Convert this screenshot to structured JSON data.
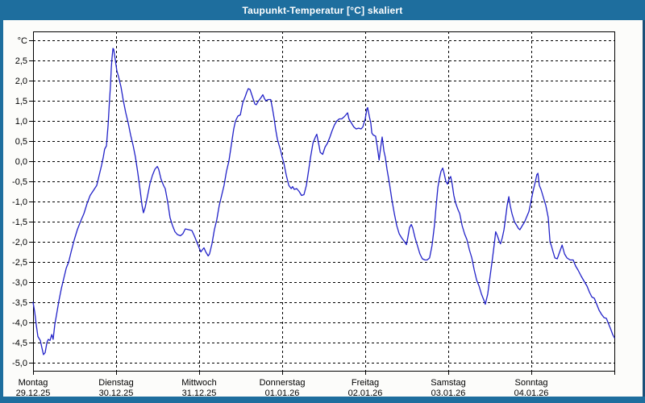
{
  "window": {
    "title": "Taupunkt-Temperatur [°C] skaliert",
    "colors": {
      "title_bar": "#1e6e9e",
      "frame_right": "#1c5078",
      "plot_background": "#ffffff",
      "grid": "#000000",
      "line": "#2222c8",
      "text": "#000000"
    }
  },
  "chart_data": {
    "type": "line",
    "title": "Taupunkt-Temperatur [°C] skaliert",
    "grid": "dashed",
    "legend": "none",
    "y_axis": {
      "unit": "°C",
      "min": -5.2,
      "max": 3.2,
      "tick_step": 0.5,
      "ticks": [
        {
          "value": 3.0,
          "label": "°C"
        },
        {
          "value": 2.5,
          "label": "2,5"
        },
        {
          "value": 2.0,
          "label": "2,0"
        },
        {
          "value": 1.5,
          "label": "1,5"
        },
        {
          "value": 1.0,
          "label": "1,0"
        },
        {
          "value": 0.5,
          "label": "0,5"
        },
        {
          "value": 0.0,
          "label": "0,0"
        },
        {
          "value": -0.5,
          "label": "-0,5"
        },
        {
          "value": -1.0,
          "label": "-1,0"
        },
        {
          "value": -1.5,
          "label": "-1,5"
        },
        {
          "value": -2.0,
          "label": "-2,0"
        },
        {
          "value": -2.5,
          "label": "-2,5"
        },
        {
          "value": -3.0,
          "label": "-3,0"
        },
        {
          "value": -3.5,
          "label": "-3,5"
        },
        {
          "value": -4.0,
          "label": "-4,0"
        },
        {
          "value": -4.5,
          "label": "-4,5"
        },
        {
          "value": -5.0,
          "label": "-5,0"
        }
      ]
    },
    "x_axis": {
      "unit": "hours",
      "range_hours": [
        0,
        168
      ],
      "day_width_hours": 24,
      "days": [
        {
          "name": "Montag",
          "date": "29.12.25"
        },
        {
          "name": "Dienstag",
          "date": "30.12.25"
        },
        {
          "name": "Mittwoch",
          "date": "31.12.25"
        },
        {
          "name": "Donnerstag",
          "date": "01.01.26"
        },
        {
          "name": "Freitag",
          "date": "02.01.26"
        },
        {
          "name": "Samstag",
          "date": "03.01.26"
        },
        {
          "name": "Sonntag",
          "date": "04.01.26"
        }
      ]
    },
    "series": [
      {
        "name": "Taupunkt-Temperatur",
        "color": "#2222c8",
        "points": [
          [
            0,
            -3.5
          ],
          [
            0.5,
            -3.75
          ],
          [
            0.9,
            -4.05
          ],
          [
            1.4,
            -4.35
          ],
          [
            2.1,
            -4.45
          ],
          [
            2.6,
            -4.65
          ],
          [
            3,
            -4.8
          ],
          [
            3.5,
            -4.75
          ],
          [
            4,
            -4.5
          ],
          [
            4.4,
            -4.42
          ],
          [
            4.9,
            -4.45
          ],
          [
            5.4,
            -4.3
          ],
          [
            5.8,
            -4.42
          ],
          [
            6.3,
            -4.05
          ],
          [
            6.8,
            -3.8
          ],
          [
            7.5,
            -3.45
          ],
          [
            8.2,
            -3.15
          ],
          [
            8.9,
            -2.9
          ],
          [
            9.6,
            -2.65
          ],
          [
            10.3,
            -2.5
          ],
          [
            11,
            -2.25
          ],
          [
            11.9,
            -1.95
          ],
          [
            12.8,
            -1.7
          ],
          [
            13.7,
            -1.5
          ],
          [
            14.7,
            -1.3
          ],
          [
            15.6,
            -1.05
          ],
          [
            16.5,
            -0.85
          ],
          [
            17.5,
            -0.72
          ],
          [
            18.4,
            -0.6
          ],
          [
            19.1,
            -0.35
          ],
          [
            19.8,
            -0.1
          ],
          [
            20.3,
            0.1
          ],
          [
            20.7,
            0.3
          ],
          [
            21.2,
            0.38
          ],
          [
            21.7,
            0.9
          ],
          [
            22.1,
            1.5
          ],
          [
            22.4,
            1.9
          ],
          [
            22.6,
            2.3
          ],
          [
            22.8,
            2.55
          ],
          [
            23.1,
            2.8
          ],
          [
            23.3,
            2.78
          ],
          [
            23.8,
            2.5
          ],
          [
            24.2,
            2.25
          ],
          [
            24.7,
            2.1
          ],
          [
            25.4,
            1.85
          ],
          [
            26.1,
            1.5
          ],
          [
            26.8,
            1.2
          ],
          [
            27.5,
            0.95
          ],
          [
            28.2,
            0.65
          ],
          [
            28.9,
            0.4
          ],
          [
            29.6,
            0.1
          ],
          [
            30.3,
            -0.3
          ],
          [
            31,
            -0.75
          ],
          [
            31.5,
            -1.1
          ],
          [
            31.9,
            -1.28
          ],
          [
            32.4,
            -1.15
          ],
          [
            33.1,
            -0.85
          ],
          [
            33.8,
            -0.55
          ],
          [
            34.5,
            -0.35
          ],
          [
            35.2,
            -0.2
          ],
          [
            35.9,
            -0.13
          ],
          [
            36.3,
            -0.2
          ],
          [
            37,
            -0.45
          ],
          [
            37.7,
            -0.6
          ],
          [
            38.2,
            -0.68
          ],
          [
            38.9,
            -1
          ],
          [
            39.6,
            -1.4
          ],
          [
            40.3,
            -1.6
          ],
          [
            41,
            -1.75
          ],
          [
            41.7,
            -1.82
          ],
          [
            42.6,
            -1.85
          ],
          [
            43.3,
            -1.8
          ],
          [
            44,
            -1.68
          ],
          [
            45,
            -1.7
          ],
          [
            45.9,
            -1.72
          ],
          [
            46.6,
            -1.85
          ],
          [
            47.3,
            -2
          ],
          [
            48,
            -2.15
          ],
          [
            48.5,
            -2.25
          ],
          [
            48.9,
            -2.2
          ],
          [
            49.4,
            -2.15
          ],
          [
            49.9,
            -2.25
          ],
          [
            50.6,
            -2.35
          ],
          [
            51,
            -2.3
          ],
          [
            51.7,
            -2.05
          ],
          [
            52.4,
            -1.7
          ],
          [
            53.1,
            -1.45
          ],
          [
            53.8,
            -1.1
          ],
          [
            54.5,
            -0.85
          ],
          [
            55.2,
            -0.6
          ],
          [
            55.9,
            -0.25
          ],
          [
            56.6,
            0
          ],
          [
            57.3,
            0.4
          ],
          [
            58,
            0.8
          ],
          [
            58.5,
            1
          ],
          [
            59.2,
            1.12
          ],
          [
            59.9,
            1.15
          ],
          [
            60.6,
            1.45
          ],
          [
            61.3,
            1.6
          ],
          [
            61.7,
            1.7
          ],
          [
            62.2,
            1.8
          ],
          [
            62.7,
            1.78
          ],
          [
            63.4,
            1.6
          ],
          [
            64.1,
            1.42
          ],
          [
            64.5,
            1.4
          ],
          [
            65.2,
            1.5
          ],
          [
            65.9,
            1.58
          ],
          [
            66.4,
            1.65
          ],
          [
            66.9,
            1.55
          ],
          [
            67.3,
            1.5
          ],
          [
            68,
            1.53
          ],
          [
            68.7,
            1.53
          ],
          [
            69.2,
            1.3
          ],
          [
            69.7,
            1.05
          ],
          [
            70.1,
            0.8
          ],
          [
            70.6,
            0.55
          ],
          [
            71.1,
            0.4
          ],
          [
            71.5,
            0.28
          ],
          [
            72,
            0.1
          ],
          [
            72.5,
            -0.05
          ],
          [
            73.2,
            -0.35
          ],
          [
            73.9,
            -0.6
          ],
          [
            74.6,
            -0.68
          ],
          [
            75,
            -0.63
          ],
          [
            75.5,
            -0.7
          ],
          [
            76.2,
            -0.68
          ],
          [
            76.9,
            -0.75
          ],
          [
            77.6,
            -0.85
          ],
          [
            78.3,
            -0.83
          ],
          [
            79,
            -0.6
          ],
          [
            79.7,
            -0.2
          ],
          [
            80.2,
            0.1
          ],
          [
            80.9,
            0.45
          ],
          [
            81.6,
            0.6
          ],
          [
            82,
            0.67
          ],
          [
            82.5,
            0.45
          ],
          [
            83,
            0.22
          ],
          [
            83.7,
            0.17
          ],
          [
            84.4,
            0.35
          ],
          [
            85.1,
            0.45
          ],
          [
            85.8,
            0.6
          ],
          [
            86.4,
            0.75
          ],
          [
            87.1,
            0.9
          ],
          [
            87.8,
            1
          ],
          [
            88.5,
            1.05
          ],
          [
            89.2,
            1.05
          ],
          [
            89.9,
            1.1
          ],
          [
            90.4,
            1.15
          ],
          [
            90.9,
            1.2
          ],
          [
            91.3,
            1.05
          ],
          [
            92,
            0.95
          ],
          [
            92.7,
            0.85
          ],
          [
            93.4,
            0.8
          ],
          [
            94.1,
            0.82
          ],
          [
            94.8,
            0.8
          ],
          [
            95.3,
            0.85
          ],
          [
            96,
            1.05
          ],
          [
            96.5,
            1.3
          ],
          [
            96.7,
            1.33
          ],
          [
            97.2,
            1.1
          ],
          [
            97.6,
            0.95
          ],
          [
            97.9,
            0.7
          ],
          [
            98.3,
            0.65
          ],
          [
            99,
            0.62
          ],
          [
            99.5,
            0.35
          ],
          [
            100,
            0.03
          ],
          [
            100.4,
            0.3
          ],
          [
            100.9,
            0.6
          ],
          [
            101.4,
            0.25
          ],
          [
            101.8,
            0.1
          ],
          [
            102.3,
            -0.2
          ],
          [
            103,
            -0.55
          ],
          [
            103.7,
            -0.95
          ],
          [
            104.4,
            -1.3
          ],
          [
            105.1,
            -1.6
          ],
          [
            105.8,
            -1.8
          ],
          [
            106.5,
            -1.9
          ],
          [
            107.2,
            -1.98
          ],
          [
            107.9,
            -2.07
          ],
          [
            108.3,
            -1.9
          ],
          [
            108.8,
            -1.65
          ],
          [
            109.3,
            -1.57
          ],
          [
            109.7,
            -1.65
          ],
          [
            110.4,
            -1.9
          ],
          [
            111.1,
            -2.1
          ],
          [
            111.8,
            -2.3
          ],
          [
            112.5,
            -2.42
          ],
          [
            113.2,
            -2.45
          ],
          [
            113.9,
            -2.45
          ],
          [
            114.6,
            -2.4
          ],
          [
            115.3,
            -2.1
          ],
          [
            116,
            -1.6
          ],
          [
            116.5,
            -1.1
          ],
          [
            117,
            -0.65
          ],
          [
            117.4,
            -0.45
          ],
          [
            117.9,
            -0.25
          ],
          [
            118.4,
            -0.17
          ],
          [
            118.8,
            -0.3
          ],
          [
            119.3,
            -0.5
          ],
          [
            119.8,
            -0.57
          ],
          [
            120.2,
            -0.45
          ],
          [
            120.7,
            -0.38
          ],
          [
            121.2,
            -0.6
          ],
          [
            121.6,
            -0.85
          ],
          [
            122.1,
            -1.03
          ],
          [
            122.8,
            -1.2
          ],
          [
            123.3,
            -1.3
          ],
          [
            124,
            -1.6
          ],
          [
            124.7,
            -1.8
          ],
          [
            125.4,
            -1.95
          ],
          [
            126.1,
            -2.2
          ],
          [
            126.8,
            -2.4
          ],
          [
            127.5,
            -2.7
          ],
          [
            128.2,
            -2.95
          ],
          [
            128.9,
            -3.1
          ],
          [
            129.6,
            -3.3
          ],
          [
            130.3,
            -3.45
          ],
          [
            130.7,
            -3.55
          ],
          [
            131.4,
            -3.3
          ],
          [
            132.1,
            -2.85
          ],
          [
            132.8,
            -2.4
          ],
          [
            133.3,
            -2.05
          ],
          [
            133.7,
            -1.75
          ],
          [
            134.2,
            -1.85
          ],
          [
            134.7,
            -1.98
          ],
          [
            135.1,
            -2.05
          ],
          [
            135.6,
            -1.9
          ],
          [
            136.1,
            -1.7
          ],
          [
            136.5,
            -1.45
          ],
          [
            137,
            -1.1
          ],
          [
            137.5,
            -0.88
          ],
          [
            137.9,
            -1.1
          ],
          [
            138.4,
            -1.3
          ],
          [
            139.1,
            -1.5
          ],
          [
            139.8,
            -1.6
          ],
          [
            140.3,
            -1.67
          ],
          [
            140.7,
            -1.7
          ],
          [
            141.4,
            -1.6
          ],
          [
            142.1,
            -1.5
          ],
          [
            142.8,
            -1.35
          ],
          [
            143.3,
            -1.25
          ],
          [
            143.8,
            -1.05
          ],
          [
            144.5,
            -0.75
          ],
          [
            145.2,
            -0.5
          ],
          [
            145.6,
            -0.33
          ],
          [
            145.9,
            -0.3
          ],
          [
            146.3,
            -0.6
          ],
          [
            146.8,
            -0.7
          ],
          [
            147.5,
            -0.9
          ],
          [
            148.2,
            -1.1
          ],
          [
            148.9,
            -1.4
          ],
          [
            149.4,
            -2
          ],
          [
            149.8,
            -2.1
          ],
          [
            150.3,
            -2.25
          ],
          [
            150.8,
            -2.4
          ],
          [
            151.5,
            -2.42
          ],
          [
            152.2,
            -2.25
          ],
          [
            152.9,
            -2.08
          ],
          [
            153.6,
            -2.3
          ],
          [
            154.3,
            -2.4
          ],
          [
            155.2,
            -2.45
          ],
          [
            156.1,
            -2.45
          ],
          [
            156.8,
            -2.6
          ],
          [
            157.5,
            -2.7
          ],
          [
            158.4,
            -2.85
          ],
          [
            159.4,
            -3
          ],
          [
            160.1,
            -3.1
          ],
          [
            160.8,
            -3.25
          ],
          [
            161.5,
            -3.37
          ],
          [
            162.2,
            -3.4
          ],
          [
            162.9,
            -3.55
          ],
          [
            163.6,
            -3.7
          ],
          [
            164.3,
            -3.8
          ],
          [
            165,
            -3.88
          ],
          [
            165.7,
            -3.9
          ],
          [
            166.4,
            -4.05
          ],
          [
            167.1,
            -4.2
          ],
          [
            167.5,
            -4.3
          ],
          [
            168,
            -4.38
          ]
        ]
      }
    ]
  }
}
